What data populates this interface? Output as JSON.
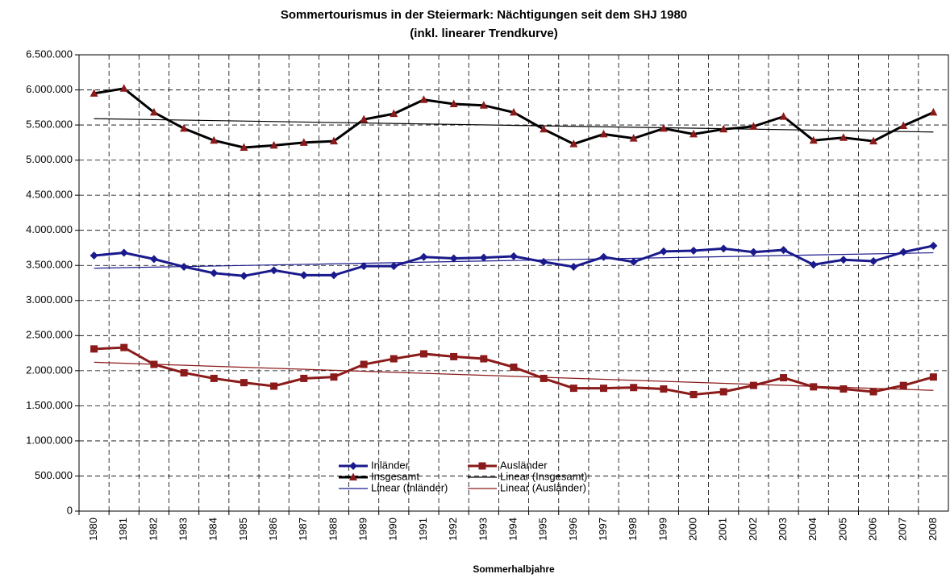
{
  "chart_data": {
    "type": "line",
    "title": "Sommertourismus in der Steiermark: Nächtigungen seit dem SHJ 1980",
    "subtitle": "(inkl. linearer Trendkurve)",
    "x_label": "Sommerhalbjahre",
    "categories": [
      "1980",
      "1981",
      "1982",
      "1983",
      "1984",
      "1985",
      "1986",
      "1987",
      "1988",
      "1989",
      "1990",
      "1991",
      "1992",
      "1993",
      "1994",
      "1995",
      "1996",
      "1997",
      "1998",
      "1999",
      "2000",
      "2001",
      "2002",
      "2003",
      "2004",
      "2005",
      "2006",
      "2007",
      "2008"
    ],
    "series": [
      {
        "name": "Inländer",
        "color": "#1a1a8c",
        "marker": "diamond",
        "marker_color": "#1a1a8c",
        "values": [
          3640000,
          3680000,
          3590000,
          3480000,
          3390000,
          3350000,
          3430000,
          3360000,
          3360000,
          3490000,
          3490000,
          3620000,
          3600000,
          3610000,
          3630000,
          3550000,
          3480000,
          3620000,
          3550000,
          3700000,
          3710000,
          3740000,
          3690000,
          3720000,
          3510000,
          3580000,
          3560000,
          3690000,
          3780000
        ]
      },
      {
        "name": "Ausländer",
        "color": "#8b1a1a",
        "marker": "square",
        "marker_color": "#8b1a1a",
        "values": [
          2310000,
          2330000,
          2090000,
          1970000,
          1890000,
          1830000,
          1780000,
          1890000,
          1910000,
          2090000,
          2170000,
          2240000,
          2200000,
          2170000,
          2050000,
          1890000,
          1750000,
          1750000,
          1760000,
          1740000,
          1660000,
          1700000,
          1790000,
          1900000,
          1770000,
          1740000,
          1700000,
          1790000,
          1910000
        ]
      },
      {
        "name": "Insgesamt",
        "color": "#000000",
        "marker": "triangle",
        "marker_color": "#8b1a1a",
        "values": [
          5950000,
          6020000,
          5680000,
          5450000,
          5280000,
          5180000,
          5210000,
          5250000,
          5270000,
          5580000,
          5660000,
          5860000,
          5800000,
          5780000,
          5680000,
          5440000,
          5230000,
          5370000,
          5310000,
          5450000,
          5370000,
          5440000,
          5480000,
          5620000,
          5280000,
          5320000,
          5270000,
          5490000,
          5680000
        ]
      }
    ],
    "trendlines": [
      {
        "name": "Linear (Insgesamt)",
        "color": "#000000",
        "values": [
          5590000,
          5400000
        ]
      },
      {
        "name": "Linear (Inländer)",
        "color": "#1a1a8c",
        "values": [
          3460000,
          3680000
        ]
      },
      {
        "name": "Linear (Ausländer)",
        "color": "#8b1a1a",
        "values": [
          2120000,
          1720000
        ]
      }
    ],
    "ylim": [
      0,
      6500000
    ],
    "yticks": [
      0,
      {
        "value": 500000,
        "label": "500.000"
      },
      {
        "value": 1000000,
        "label": "1.000.000"
      },
      {
        "value": 1500000,
        "label": "1.500.000"
      },
      {
        "value": 2000000,
        "label": "2.000.000"
      },
      {
        "value": 2500000,
        "label": "2.500.000"
      },
      {
        "value": 3000000,
        "label": "3.000.000"
      },
      {
        "value": 3500000,
        "label": "3.500.000"
      },
      {
        "value": 4000000,
        "label": "4.000.000"
      },
      {
        "value": 4500000,
        "label": "4.500.000"
      },
      {
        "value": 5000000,
        "label": "5.000.000"
      },
      {
        "value": 5500000,
        "label": "5.500.000"
      },
      {
        "value": 6000000,
        "label": "6.000.000"
      },
      {
        "value": 6500000,
        "label": "6.500.000"
      }
    ],
    "grid": true,
    "legend": "bottom"
  }
}
